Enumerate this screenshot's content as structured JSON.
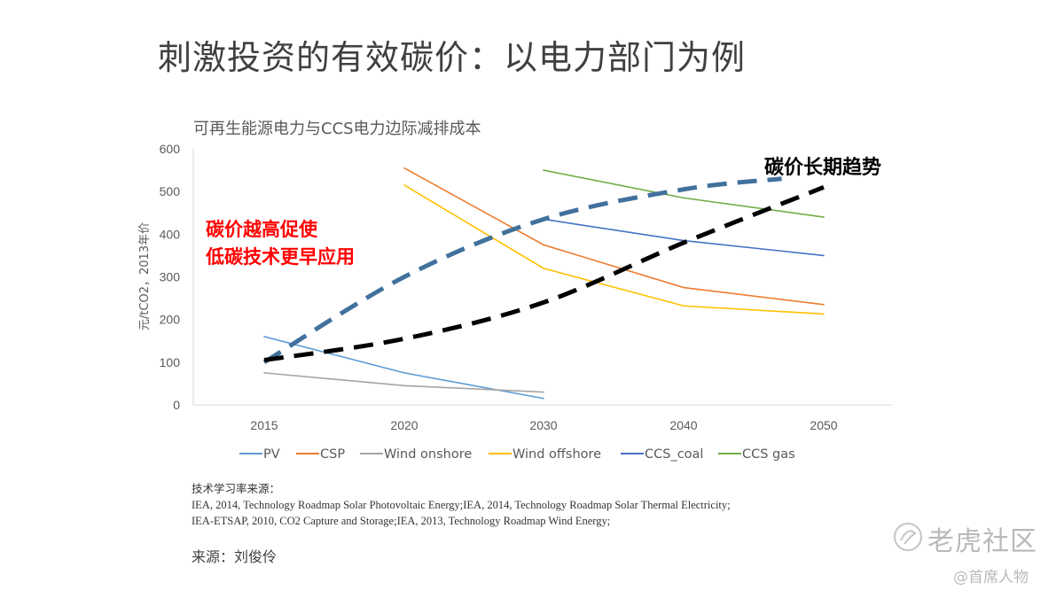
{
  "slide": {
    "title": "刺激投资的有效碳价：以电力部门为例"
  },
  "chart_data": {
    "type": "line",
    "title": "可再生能源电力与CCS电力边际减排成本",
    "ylabel": "元/tCO2，2013年价",
    "xlabel": "",
    "categories": [
      "2015",
      "2020",
      "2030",
      "2040",
      "2050"
    ],
    "ylim": [
      0,
      600
    ],
    "yticks": [
      0,
      100,
      200,
      300,
      400,
      500,
      600
    ],
    "grid": false,
    "legend_position": "bottom",
    "series": [
      {
        "name": "PV",
        "color": "#5B9BD5",
        "values": [
          160,
          75,
          15,
          null,
          null
        ]
      },
      {
        "name": "CSP",
        "color": "#ED7D31",
        "values": [
          null,
          555,
          375,
          275,
          235
        ]
      },
      {
        "name": "Wind onshore",
        "color": "#A5A5A5",
        "values": [
          75,
          45,
          30,
          null,
          null
        ]
      },
      {
        "name": "Wind offshore",
        "color": "#FFC000",
        "values": [
          null,
          515,
          320,
          232,
          213
        ]
      },
      {
        "name": "CCS_coal",
        "color": "#4472C4",
        "values": [
          null,
          null,
          435,
          385,
          350
        ]
      },
      {
        "name": "CCS gas",
        "color": "#70AD47",
        "values": [
          null,
          null,
          550,
          485,
          440
        ]
      }
    ],
    "trend_lines": [
      {
        "name": "blue-dashed-trend",
        "color": "#41719C",
        "points": [
          [
            2015,
            100
          ],
          [
            2020,
            300
          ],
          [
            2030,
            435
          ],
          [
            2040,
            505
          ],
          [
            2047,
            530
          ]
        ]
      },
      {
        "name": "black-dashed-trend",
        "color": "#000000",
        "points": [
          [
            2015,
            105
          ],
          [
            2020,
            155
          ],
          [
            2030,
            240
          ],
          [
            2040,
            380
          ],
          [
            2050,
            510
          ]
        ]
      }
    ],
    "annotations": [
      {
        "name": "trend-label",
        "text": "碳价长期趋势",
        "color": "#000000"
      },
      {
        "name": "red-note-line1",
        "text": "碳价越高促使",
        "color": "#FF0000"
      },
      {
        "name": "red-note-line2",
        "text": "低碳技术更早应用",
        "color": "#FF0000"
      }
    ]
  },
  "sources": {
    "heading": "技术学习率来源：",
    "line1": "IEA, 2014, Technology  Roadmap Solar Photovoltaic  Energy;IEA,  2014, Technology  Roadmap Solar Thermal  Electricity;",
    "line2": "IEA-ETSAP, 2010, CO2 Capture and Storage;IEA, 2013, Technology  Roadmap Wind Energy;"
  },
  "author": "来源：刘俊伶",
  "watermark": {
    "brand": "老虎社区",
    "user": "@首席人物"
  }
}
